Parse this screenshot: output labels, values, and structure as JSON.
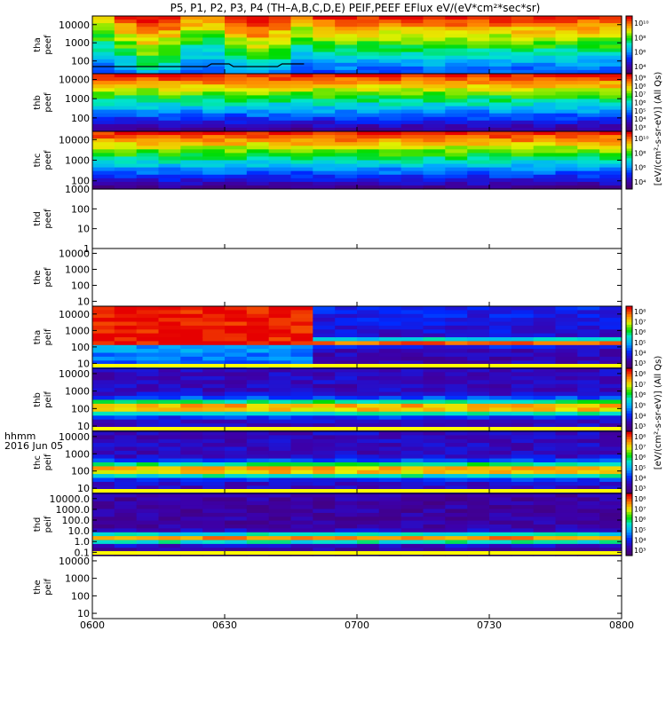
{
  "title": "P5, P1, P2, P3, P4 (TH–A,B,C,D,E) PEIF,PEEF EFlux eV/(eV*cm²*sec*sr)",
  "time_axis": {
    "label_line1": "hhmm",
    "label_line2": "2016 Jun 05",
    "ticks": [
      "0600",
      "0630",
      "0700",
      "0730",
      "0800"
    ],
    "start_minutes": 360,
    "end_minutes": 480
  },
  "colorbar_labels": {
    "electrons": "[eV/(cm²-s-sr-eV)] (All Qs)",
    "ions": "[eV/(cm²-s-sr-eV)] (All Qs)"
  },
  "chart_data": [
    {
      "type": "heatmap",
      "probe": "tha",
      "species": "peef",
      "ylabel_probe": "tha",
      "ylabel_product": "peef",
      "y_ticks": [
        "100",
        "1000",
        "10000"
      ],
      "y_range": [
        20,
        30000
      ],
      "y_scale": "log",
      "colorbar_ticks": [
        "10⁴",
        "10⁶",
        "10⁸",
        "10¹⁰"
      ],
      "features": "high flux below ~100 eV; black trace near 40 eV until ~06:48"
    },
    {
      "type": "heatmap",
      "probe": "thb",
      "species": "peef",
      "ylabel_probe": "thb",
      "ylabel_product": "peef",
      "y_ticks": [
        "100",
        "1000",
        "10000"
      ],
      "y_range": [
        20,
        20000
      ],
      "y_scale": "log",
      "colorbar_ticks": [
        "10³",
        "10⁴",
        "10⁵",
        "10⁶",
        "10⁷",
        "10⁸",
        "10⁹"
      ],
      "features": "data gap before 06:03; steady layered spectrum"
    },
    {
      "type": "heatmap",
      "probe": "thc",
      "species": "peef",
      "ylabel_probe": "thc",
      "ylabel_product": "peef",
      "y_ticks": [
        "100",
        "1000",
        "10000"
      ],
      "y_range": [
        40,
        25000
      ],
      "y_scale": "log",
      "colorbar_ticks": [
        "10⁴",
        "10⁶",
        "10⁸",
        "10¹⁰"
      ],
      "features": "steady layered spectrum"
    },
    {
      "type": "heatmap",
      "probe": "thd",
      "species": "peef",
      "ylabel_probe": "thd",
      "ylabel_product": "peef",
      "y_ticks": [
        "1",
        "10",
        "100",
        "1000"
      ],
      "y_range": [
        1,
        1000
      ],
      "y_scale": "log",
      "colorbar_ticks": [],
      "features": "no data"
    },
    {
      "type": "heatmap",
      "probe": "the",
      "species": "peef",
      "ylabel_probe": "the",
      "ylabel_product": "peef",
      "y_ticks": [
        "10",
        "100",
        "1000",
        "10000"
      ],
      "y_range": [
        5,
        20000
      ],
      "y_scale": "log",
      "colorbar_ticks": [],
      "features": "no data"
    },
    {
      "type": "heatmap",
      "probe": "tha",
      "species": "peif",
      "ylabel_probe": "tha",
      "ylabel_product": "peif",
      "y_ticks": [
        "10",
        "100",
        "1000",
        "10000"
      ],
      "y_range": [
        5,
        30000
      ],
      "y_scale": "log",
      "colorbar_ticks": [
        "10³",
        "10⁴",
        "10⁵",
        "10⁶",
        "10⁷",
        "10⁸"
      ],
      "features": "intense flux below ~2000 eV until ~06:48, then narrow band near 800 eV"
    },
    {
      "type": "heatmap",
      "probe": "thb",
      "species": "peif",
      "ylabel_probe": "thb",
      "ylabel_product": "peif",
      "y_ticks": [
        "10",
        "100",
        "1000",
        "10000"
      ],
      "y_range": [
        5,
        20000
      ],
      "y_scale": "log",
      "colorbar_ticks": [
        "10³",
        "10⁴",
        "10⁵",
        "10⁶",
        "10⁷",
        "10⁸"
      ],
      "features": "band peaked near 1000 eV"
    },
    {
      "type": "heatmap",
      "probe": "thc",
      "species": "peif",
      "ylabel_probe": "thc",
      "ylabel_product": "peif",
      "y_ticks": [
        "10",
        "100",
        "1000",
        "10000"
      ],
      "y_range": [
        5,
        20000
      ],
      "y_scale": "log",
      "colorbar_ticks": [
        "10³",
        "10⁴",
        "10⁵",
        "10⁶",
        "10⁷",
        "10⁸"
      ],
      "features": "band peaked near 1000 eV"
    },
    {
      "type": "heatmap",
      "probe": "thd",
      "species": "peif",
      "ylabel_probe": "thd",
      "ylabel_product": "peif",
      "y_ticks": [
        "0.1",
        "1.0",
        "10.0",
        "100.0",
        "1000.0",
        "10000.0"
      ],
      "y_range": [
        0.05,
        30000
      ],
      "y_scale": "log",
      "colorbar_ticks": [
        "10³",
        "10⁴",
        "10⁵",
        "10⁶",
        "10⁷",
        "10⁸"
      ],
      "features": "band peaked near 1000 eV"
    },
    {
      "type": "heatmap",
      "probe": "the",
      "species": "peif",
      "ylabel_probe": "the",
      "ylabel_product": "peif",
      "y_ticks": [
        "10",
        "100",
        "1000",
        "10000"
      ],
      "y_range": [
        5,
        20000
      ],
      "y_scale": "log",
      "colorbar_ticks": [],
      "features": "no data"
    }
  ]
}
